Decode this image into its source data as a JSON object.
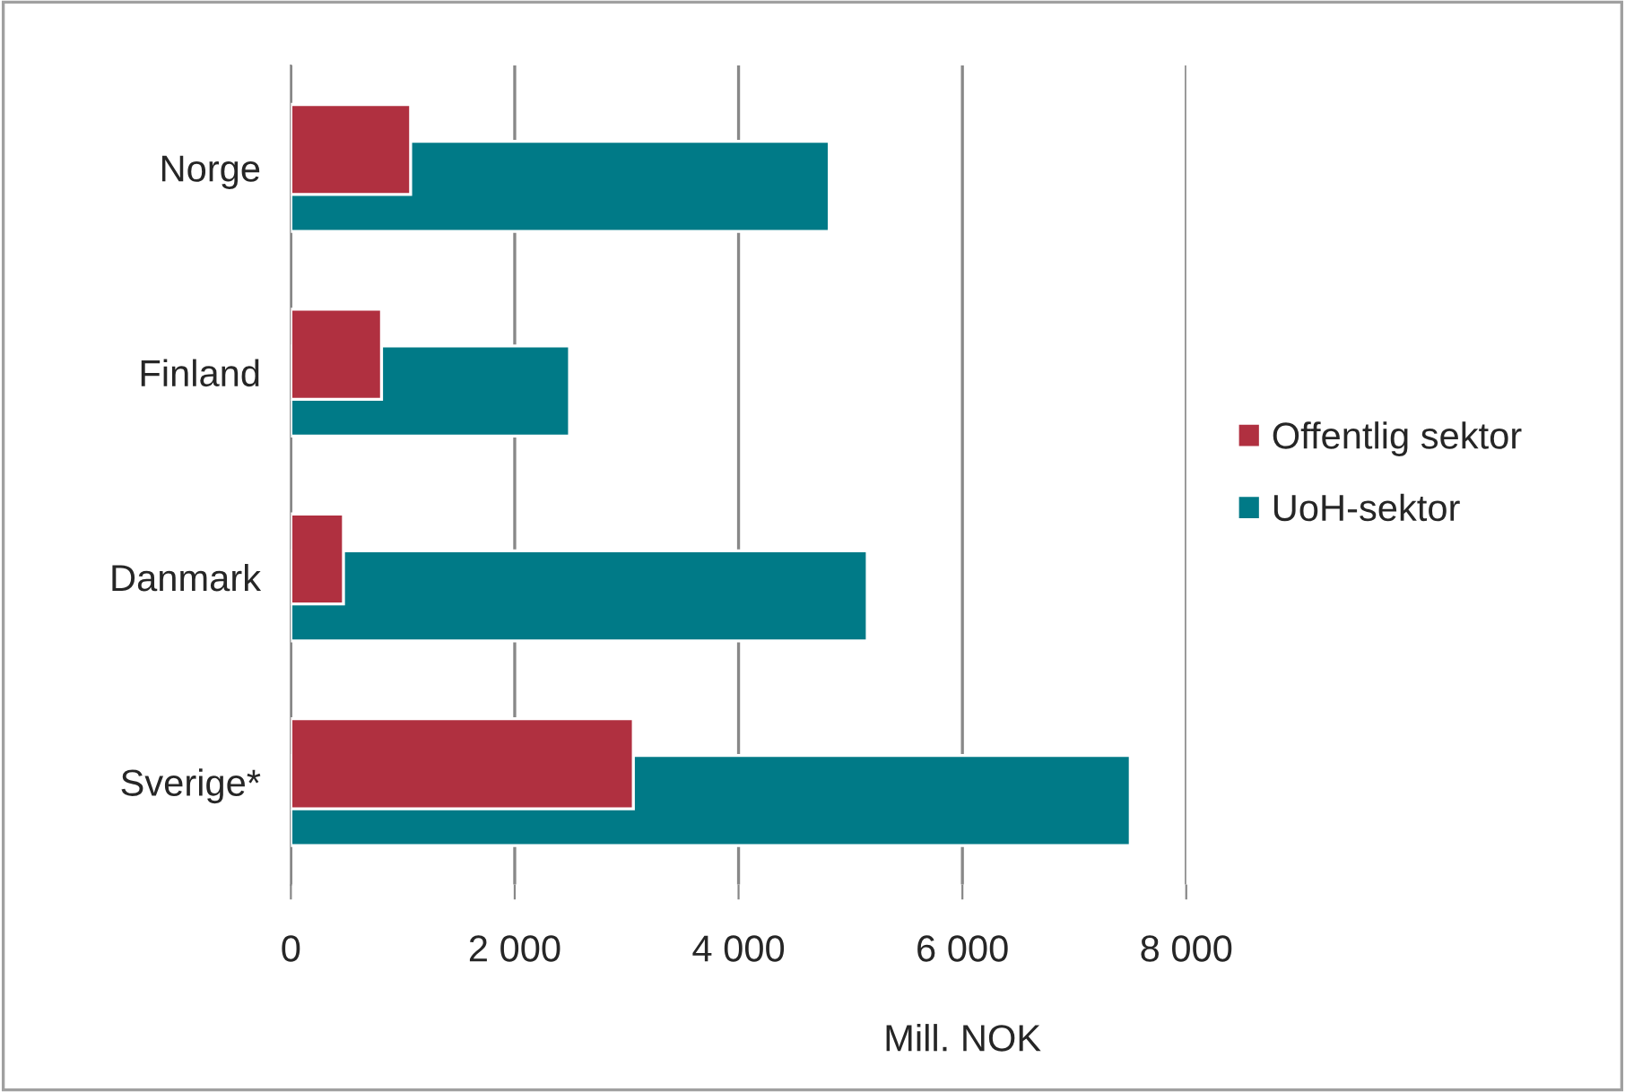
{
  "chart_data": {
    "type": "bar",
    "orientation": "horizontal",
    "xlabel": "Mill. NOK",
    "categories": [
      "Norge",
      "Finland",
      "Danmark",
      "Sverige*"
    ],
    "series": [
      {
        "name": "Offentlig sektor",
        "color": "#b03040",
        "values": [
          1070,
          810,
          470,
          3060
        ]
      },
      {
        "name": "UoH-sektor",
        "color": "#007a87",
        "values": [
          4810,
          2490,
          5150,
          7500
        ]
      }
    ],
    "xlim": [
      0,
      8000
    ],
    "xticks": [
      0,
      {
        "value": 2000,
        "label": "2 000"
      },
      {
        "value": 4000,
        "label": "4 000"
      },
      {
        "value": 6000,
        "label": "6 000"
      },
      {
        "value": 8000,
        "label": "8 000"
      }
    ],
    "grid": "x",
    "legend": "right"
  }
}
